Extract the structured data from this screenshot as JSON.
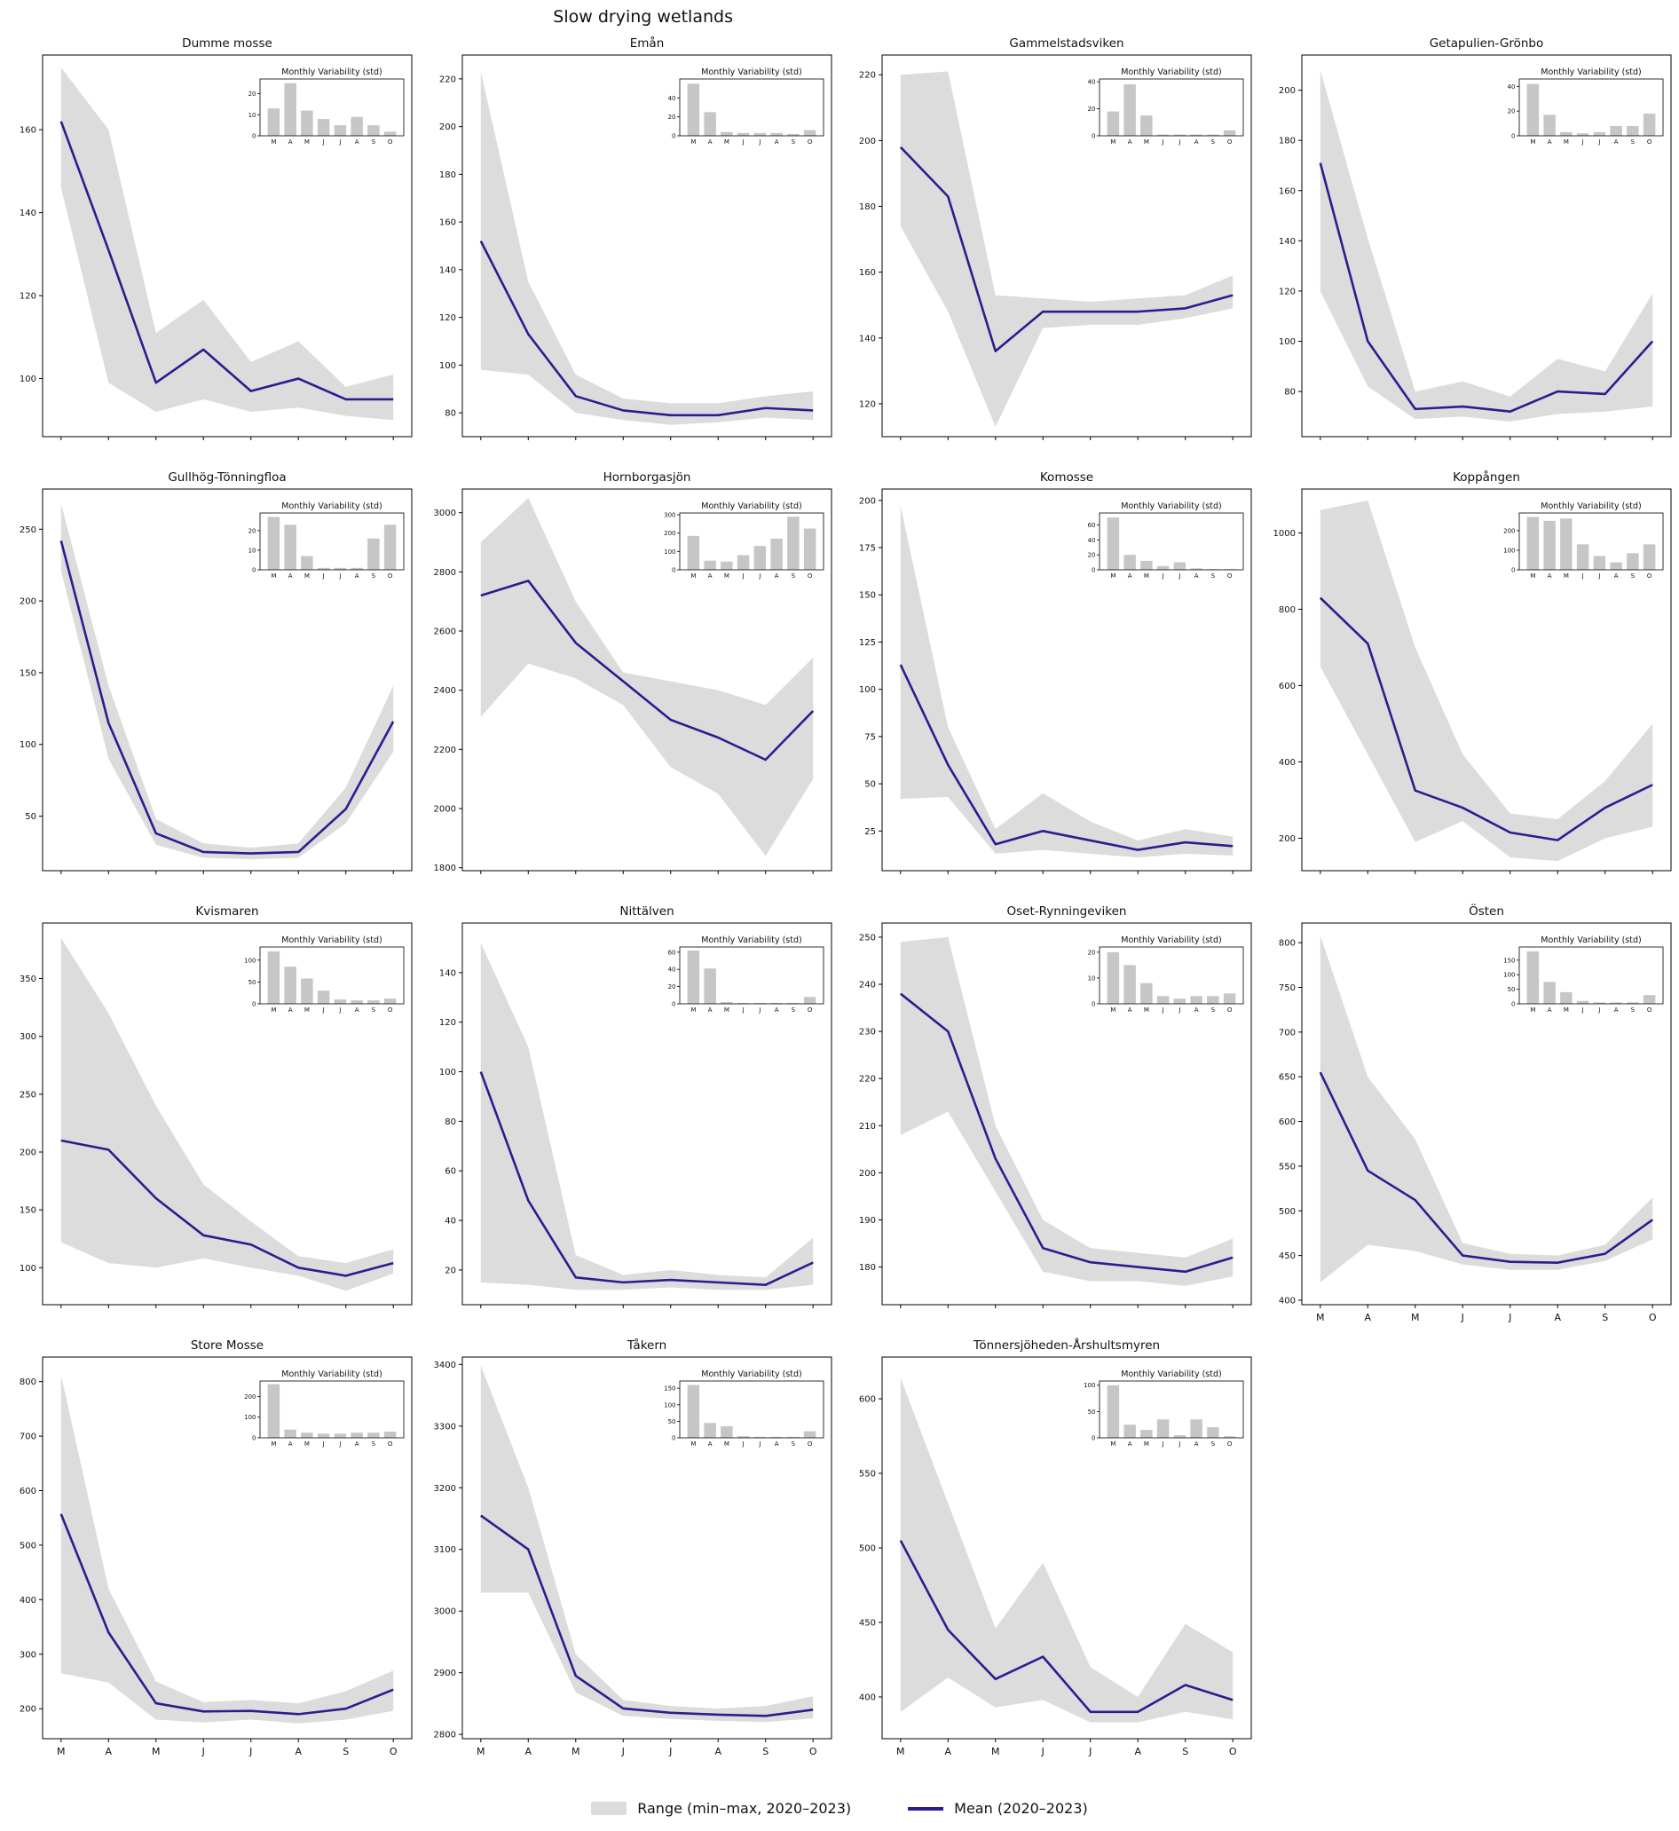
{
  "title": "Slow drying wetlands",
  "inset_title": "Monthly Variability (std)",
  "months": [
    "M",
    "A",
    "M",
    "J",
    "J",
    "A",
    "S",
    "O"
  ],
  "colors": {
    "mean": "#2b1d8f",
    "range": "#dcdcdc",
    "bars": "#c6c6c6"
  },
  "legend": {
    "range_label": "Range (min–max, 2020–2023)",
    "mean_label": "Mean (2020–2023)"
  },
  "chart_data": [
    {
      "type": "line",
      "title": "Dumme mosse",
      "ylim": [
        86,
        178
      ],
      "yticks": [
        100,
        120,
        140,
        160
      ],
      "mean": [
        162,
        131,
        99,
        107,
        97,
        100,
        95,
        95
      ],
      "min": [
        146,
        99,
        92,
        95,
        92,
        93,
        91,
        90
      ],
      "max": [
        175,
        160,
        111,
        119,
        104,
        109,
        98,
        101
      ],
      "show_x_labels": false,
      "inset": {
        "max": 27,
        "yticks": [
          0,
          10,
          20
        ],
        "values": [
          13,
          25,
          12,
          8,
          5,
          9,
          5,
          2
        ]
      }
    },
    {
      "type": "line",
      "title": "Emån",
      "ylim": [
        70,
        230
      ],
      "yticks": [
        80,
        100,
        120,
        140,
        160,
        180,
        200,
        220
      ],
      "mean": [
        152,
        113,
        87,
        81,
        79,
        79,
        82,
        81
      ],
      "min": [
        98,
        96,
        80,
        77,
        75,
        76,
        78,
        77
      ],
      "max": [
        223,
        135,
        96,
        86,
        84,
        84,
        87,
        89
      ],
      "show_x_labels": false,
      "inset": {
        "max": 60,
        "yticks": [
          0,
          20,
          40
        ],
        "values": [
          55,
          25,
          4,
          3,
          3,
          3,
          2,
          6
        ]
      }
    },
    {
      "type": "line",
      "title": "Gammelstadsviken",
      "ylim": [
        110,
        226
      ],
      "yticks": [
        120,
        140,
        160,
        180,
        200,
        220
      ],
      "mean": [
        198,
        183,
        136,
        148,
        148,
        148,
        149,
        153
      ],
      "min": [
        174,
        148,
        113,
        143,
        144,
        144,
        146,
        149
      ],
      "max": [
        220,
        221,
        153,
        152,
        151,
        152,
        153,
        159
      ],
      "show_x_labels": false,
      "inset": {
        "max": 42,
        "yticks": [
          0,
          20,
          40
        ],
        "values": [
          18,
          38,
          15,
          1,
          1,
          1,
          1,
          4
        ]
      }
    },
    {
      "type": "line",
      "title": "Getapulien-Grönbo",
      "ylim": [
        62,
        214
      ],
      "yticks": [
        80,
        100,
        120,
        140,
        160,
        180,
        200
      ],
      "mean": [
        171,
        100,
        73,
        74,
        72,
        80,
        79,
        100
      ],
      "min": [
        120,
        82,
        69,
        70,
        68,
        71,
        72,
        74
      ],
      "max": [
        208,
        141,
        80,
        84,
        78,
        93,
        88,
        119
      ],
      "show_x_labels": false,
      "inset": {
        "max": 46,
        "yticks": [
          0,
          20,
          40
        ],
        "values": [
          42,
          17,
          3,
          2,
          3,
          8,
          8,
          18
        ]
      }
    },
    {
      "type": "line",
      "title": "Gullhög-Tönningfloa",
      "ylim": [
        12,
        278
      ],
      "yticks": [
        50,
        100,
        150,
        200,
        250
      ],
      "mean": [
        242,
        115,
        38,
        25,
        24,
        25,
        55,
        116
      ],
      "min": [
        221,
        90,
        30,
        21,
        20,
        21,
        45,
        95
      ],
      "max": [
        268,
        141,
        48,
        31,
        28,
        31,
        70,
        141
      ],
      "show_x_labels": false,
      "inset": {
        "max": 29,
        "yticks": [
          0,
          10,
          20
        ],
        "values": [
          27,
          23,
          7,
          1,
          1,
          1,
          16,
          23
        ]
      }
    },
    {
      "type": "line",
      "title": "Hornborgasjön",
      "ylim": [
        1790,
        3080
      ],
      "yticks": [
        1800,
        2000,
        2200,
        2400,
        2600,
        2800,
        3000
      ],
      "mean": [
        2720,
        2770,
        2560,
        2430,
        2300,
        2240,
        2165,
        2330
      ],
      "min": [
        2310,
        2490,
        2440,
        2350,
        2140,
        2050,
        1840,
        2100
      ],
      "max": [
        2900,
        3050,
        2700,
        2460,
        2430,
        2400,
        2350,
        2510
      ],
      "show_x_labels": false,
      "inset": {
        "max": 310,
        "yticks": [
          0,
          100,
          200,
          300
        ],
        "values": [
          185,
          50,
          45,
          80,
          130,
          170,
          290,
          225
        ]
      }
    },
    {
      "type": "line",
      "title": "Komosse",
      "ylim": [
        4,
        206
      ],
      "yticks": [
        25,
        50,
        75,
        100,
        125,
        150,
        175,
        200
      ],
      "mean": [
        113,
        60,
        18,
        25,
        20,
        15,
        19,
        17
      ],
      "min": [
        42,
        43,
        13,
        15,
        13,
        11,
        13,
        12
      ],
      "max": [
        197,
        80,
        26,
        45,
        30,
        20,
        26,
        22
      ],
      "show_x_labels": false,
      "inset": {
        "max": 76,
        "yticks": [
          0,
          20,
          40,
          60
        ],
        "values": [
          70,
          20,
          12,
          5,
          10,
          2,
          1,
          1
        ]
      }
    },
    {
      "type": "line",
      "title": "Koppången",
      "ylim": [
        115,
        1115
      ],
      "yticks": [
        200,
        400,
        600,
        800,
        1000
      ],
      "mean": [
        830,
        710,
        325,
        280,
        215,
        195,
        280,
        340
      ],
      "min": [
        650,
        420,
        190,
        245,
        150,
        140,
        200,
        230
      ],
      "max": [
        1060,
        1085,
        700,
        420,
        265,
        250,
        350,
        500
      ],
      "show_x_labels": false,
      "inset": {
        "max": 290,
        "yticks": [
          0,
          100,
          200
        ],
        "values": [
          270,
          250,
          262,
          130,
          70,
          38,
          85,
          130
        ]
      }
    },
    {
      "type": "line",
      "title": "Kvismaren",
      "ylim": [
        68,
        398
      ],
      "yticks": [
        100,
        150,
        200,
        250,
        300,
        350
      ],
      "mean": [
        210,
        202,
        160,
        128,
        120,
        100,
        93,
        104
      ],
      "min": [
        122,
        104,
        100,
        108,
        100,
        93,
        80,
        95
      ],
      "max": [
        385,
        320,
        240,
        172,
        140,
        110,
        104,
        116
      ],
      "show_x_labels": false,
      "inset": {
        "max": 130,
        "yticks": [
          0,
          50,
          100
        ],
        "values": [
          120,
          85,
          58,
          30,
          10,
          8,
          8,
          12
        ]
      }
    },
    {
      "type": "line",
      "title": "Nittälven",
      "ylim": [
        6,
        160
      ],
      "yticks": [
        20,
        40,
        60,
        80,
        100,
        120,
        140
      ],
      "mean": [
        100,
        48,
        17,
        15,
        16,
        15,
        14,
        23
      ],
      "min": [
        15,
        14,
        12,
        12,
        13,
        12,
        12,
        14
      ],
      "max": [
        152,
        110,
        26,
        18,
        20,
        18,
        17,
        33
      ],
      "show_x_labels": false,
      "inset": {
        "max": 66,
        "yticks": [
          0,
          20,
          40,
          60
        ],
        "values": [
          62,
          41,
          2,
          1,
          1,
          1,
          1,
          8
        ]
      }
    },
    {
      "type": "line",
      "title": "Oset-Rynningeviken",
      "ylim": [
        172,
        253
      ],
      "yticks": [
        180,
        190,
        200,
        210,
        220,
        230,
        240,
        250
      ],
      "mean": [
        238,
        230,
        203,
        184,
        181,
        180,
        179,
        182
      ],
      "min": [
        208,
        213,
        196,
        179,
        177,
        177,
        176,
        178
      ],
      "max": [
        249,
        250,
        210,
        190,
        184,
        183,
        182,
        186
      ],
      "show_x_labels": false,
      "inset": {
        "max": 22,
        "yticks": [
          0,
          10,
          20
        ],
        "values": [
          20,
          15,
          8,
          3,
          2,
          3,
          3,
          4
        ]
      }
    },
    {
      "type": "line",
      "title": "Östen",
      "ylim": [
        395,
        822
      ],
      "yticks": [
        400,
        450,
        500,
        550,
        600,
        650,
        700,
        750,
        800
      ],
      "mean": [
        655,
        545,
        512,
        450,
        443,
        442,
        452,
        490
      ],
      "min": [
        420,
        462,
        455,
        440,
        434,
        434,
        444,
        468
      ],
      "max": [
        808,
        650,
        580,
        464,
        452,
        450,
        462,
        515
      ],
      "show_x_labels": true,
      "inset": {
        "max": 195,
        "yticks": [
          0,
          50,
          100,
          150
        ],
        "values": [
          180,
          75,
          40,
          10,
          5,
          5,
          5,
          30
        ]
      }
    },
    {
      "type": "line",
      "title": "Store Mosse",
      "ylim": [
        145,
        845
      ],
      "yticks": [
        200,
        300,
        400,
        500,
        600,
        700,
        800
      ],
      "mean": [
        557,
        340,
        210,
        195,
        196,
        190,
        200,
        235
      ],
      "min": [
        265,
        248,
        180,
        175,
        180,
        173,
        180,
        196
      ],
      "max": [
        812,
        420,
        250,
        212,
        216,
        210,
        232,
        270
      ],
      "show_x_labels": true,
      "inset": {
        "max": 275,
        "yticks": [
          0,
          100,
          200
        ],
        "values": [
          260,
          40,
          25,
          20,
          20,
          25,
          25,
          30
        ]
      }
    },
    {
      "type": "line",
      "title": "Tåkern",
      "ylim": [
        2793,
        3412
      ],
      "yticks": [
        2800,
        2900,
        3000,
        3100,
        3200,
        3300,
        3400
      ],
      "mean": [
        3155,
        3100,
        2895,
        2842,
        2835,
        2832,
        2830,
        2840
      ],
      "min": [
        3030,
        3030,
        2868,
        2830,
        2825,
        2822,
        2820,
        2826
      ],
      "max": [
        3398,
        3200,
        2930,
        2856,
        2846,
        2842,
        2846,
        2862
      ],
      "show_x_labels": true,
      "inset": {
        "max": 172,
        "yticks": [
          0,
          50,
          100,
          150
        ],
        "values": [
          160,
          45,
          35,
          5,
          3,
          3,
          3,
          20
        ]
      }
    },
    {
      "type": "line",
      "title": "Tönnersjöheden-Årshultsmyren",
      "ylim": [
        372,
        628
      ],
      "yticks": [
        400,
        450,
        500,
        550,
        600
      ],
      "mean": [
        505,
        445,
        412,
        427,
        390,
        390,
        408,
        398
      ],
      "min": [
        390,
        413,
        393,
        398,
        383,
        383,
        390,
        385
      ],
      "max": [
        614,
        530,
        446,
        490,
        420,
        400,
        449,
        430
      ],
      "show_x_labels": true,
      "inset": {
        "max": 108,
        "yticks": [
          0,
          50,
          100
        ],
        "values": [
          100,
          25,
          15,
          35,
          5,
          35,
          20,
          3
        ]
      }
    }
  ]
}
